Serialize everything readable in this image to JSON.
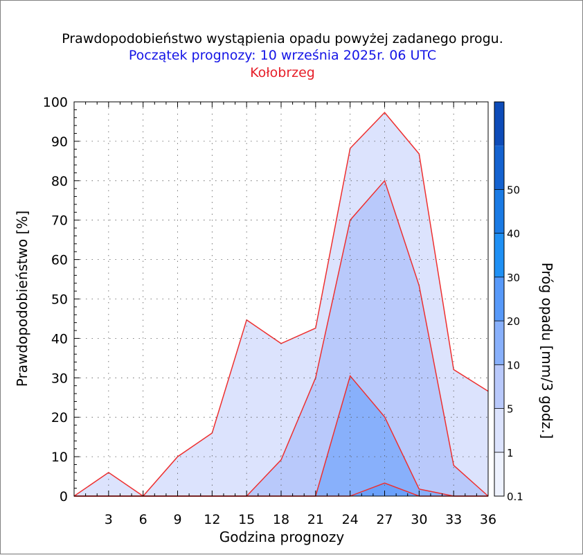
{
  "chart_data": {
    "type": "area",
    "title": "Prawdopodobieństwo wystąpienia opadu powyżej zadanego progu.",
    "subtitle": "Początek prognozy: 10 września 2025r. 06 UTC",
    "location": "Kołobrzeg",
    "xlabel": "Godzina prognozy",
    "ylabel": "Prawdopodobieństwo [%]",
    "colorbar_label": "Próg opadu [mm/3 godz.]",
    "x": [
      0,
      3,
      6,
      9,
      12,
      15,
      18,
      21,
      24,
      27,
      30,
      33,
      36
    ],
    "xlim": [
      0,
      36
    ],
    "ylim": [
      0,
      100
    ],
    "x_ticks": [
      3,
      6,
      9,
      12,
      15,
      18,
      21,
      24,
      27,
      30,
      33,
      36
    ],
    "y_ticks": [
      0,
      10,
      20,
      30,
      40,
      50,
      60,
      70,
      80,
      90,
      100
    ],
    "series": [
      {
        "name": "0.1",
        "color": "#dce3fd",
        "values": [
          0,
          6,
          0,
          10,
          16,
          44.7,
          38.7,
          42.6,
          88.2,
          97.3,
          86.8,
          32.1,
          26.6
        ]
      },
      {
        "name": "1",
        "color": "#b9c9fb",
        "values": [
          0,
          0,
          0,
          0,
          0,
          0,
          9.2,
          30,
          70,
          80,
          53.4,
          7.8,
          0
        ]
      },
      {
        "name": "5",
        "color": "#88b0fb",
        "values": [
          0,
          0,
          0,
          0,
          0,
          0,
          0,
          0,
          30.5,
          20.1,
          1.8,
          0,
          0
        ]
      },
      {
        "name": "10",
        "color": "#6aa1fb",
        "values": [
          0,
          0,
          0,
          0,
          0,
          0,
          0,
          0,
          0,
          3.3,
          0,
          0,
          0
        ]
      }
    ],
    "outline_color": "#ee2f2f",
    "colorbar": {
      "ticks": [
        "0.1",
        "1",
        "5",
        "10",
        "20",
        "30",
        "40",
        "50"
      ],
      "colors": [
        "#eef2fe",
        "#dce3fd",
        "#b9c9fb",
        "#88b0fb",
        "#5799f9",
        "#1f90f4",
        "#1a7ae4",
        "#1462d0",
        "#0d4bb8"
      ]
    }
  }
}
